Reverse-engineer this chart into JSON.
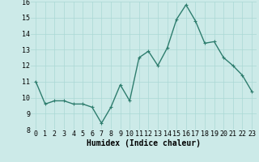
{
  "x": [
    0,
    1,
    2,
    3,
    4,
    5,
    6,
    7,
    8,
    9,
    10,
    11,
    12,
    13,
    14,
    15,
    16,
    17,
    18,
    19,
    20,
    21,
    22,
    23
  ],
  "y": [
    11.0,
    9.6,
    9.8,
    9.8,
    9.6,
    9.6,
    9.4,
    8.4,
    9.4,
    10.8,
    9.8,
    12.5,
    12.9,
    12.0,
    13.1,
    14.9,
    15.8,
    14.8,
    13.4,
    13.5,
    12.5,
    12.0,
    11.4,
    10.4
  ],
  "xlabel": "Humidex (Indice chaleur)",
  "ylim": [
    8,
    16
  ],
  "xlim": [
    -0.5,
    23.5
  ],
  "yticks": [
    8,
    9,
    10,
    11,
    12,
    13,
    14,
    15,
    16
  ],
  "xticks": [
    0,
    1,
    2,
    3,
    4,
    5,
    6,
    7,
    8,
    9,
    10,
    11,
    12,
    13,
    14,
    15,
    16,
    17,
    18,
    19,
    20,
    21,
    22,
    23
  ],
  "line_color": "#2e7d6e",
  "marker": "+",
  "bg_color": "#cceae8",
  "grid_color": "#aad8d5",
  "xlabel_fontsize": 7,
  "tick_fontsize": 6,
  "linewidth": 1.0
}
